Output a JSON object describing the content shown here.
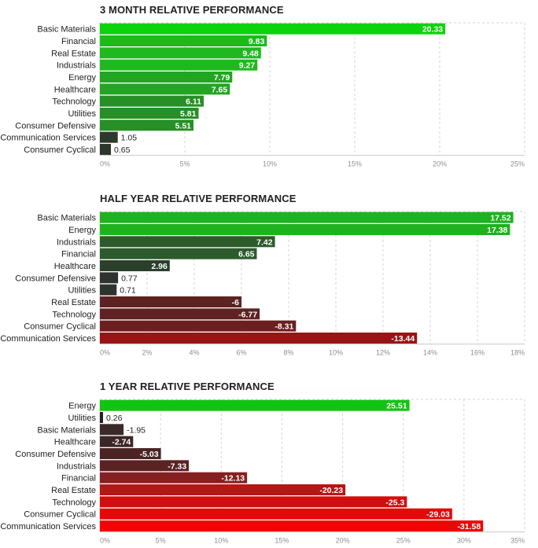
{
  "chart_data": [
    {
      "type": "bar",
      "title": "3 MONTH RELATIVE PERFORMANCE",
      "categories": [
        "Basic Materials",
        "Financial",
        "Real Estate",
        "Industrials",
        "Energy",
        "Healthcare",
        "Technology",
        "Utilities",
        "Consumer Defensive",
        "Communication Services",
        "Consumer Cyclical"
      ],
      "values": [
        20.33,
        9.83,
        9.48,
        9.27,
        7.79,
        7.65,
        6.11,
        5.81,
        5.51,
        1.05,
        0.65
      ],
      "value_labels": [
        "20.33",
        "9.83",
        "9.48",
        "9.27",
        "7.79",
        "7.65",
        "6.11",
        "5.81",
        "5.51",
        "1.05",
        "0.65"
      ],
      "xlim": [
        0,
        25
      ],
      "ticks": [
        0,
        5,
        10,
        15,
        20,
        25
      ],
      "tick_labels": [
        "0%",
        "5%",
        "10%",
        "15%",
        "20%",
        "25%"
      ],
      "colors": [
        "#0bd40b",
        "#1fb91f",
        "#1fb91f",
        "#1fb91f",
        "#23a523",
        "#23a523",
        "#268f26",
        "#268f26",
        "#268f26",
        "#2c3a2c",
        "#2c362c"
      ],
      "xlabel": "",
      "ylabel": "",
      "grid": true
    },
    {
      "type": "bar",
      "title": "HALF YEAR RELATIVE PERFORMANCE",
      "categories": [
        "Basic Materials",
        "Energy",
        "Industrials",
        "Financial",
        "Healthcare",
        "Consumer Defensive",
        "Utilities",
        "Real Estate",
        "Technology",
        "Consumer Cyclical",
        "Communication Services"
      ],
      "values": [
        17.52,
        17.38,
        7.42,
        6.65,
        2.96,
        0.77,
        0.71,
        -6,
        -6.77,
        -8.31,
        -13.44
      ],
      "value_labels": [
        "17.52",
        "17.38",
        "7.42",
        "6.65",
        "2.96",
        "0.77",
        "0.71",
        "-6",
        "-6.77",
        "-8.31",
        "-13.44"
      ],
      "xlim": [
        0,
        18
      ],
      "ticks": [
        0,
        2,
        4,
        6,
        8,
        10,
        12,
        14,
        16,
        18
      ],
      "tick_labels": [
        "0%",
        "2%",
        "4%",
        "6%",
        "8%",
        "10%",
        "12%",
        "14%",
        "16%",
        "18%"
      ],
      "colors": [
        "#1eb21e",
        "#1eb21e",
        "#2d5a2d",
        "#2d5a2d",
        "#2b402b",
        "#2f332f",
        "#2f332f",
        "#5e2222",
        "#5e2222",
        "#6b1f1f",
        "#991414"
      ],
      "xlabel": "",
      "ylabel": "",
      "grid": true
    },
    {
      "type": "bar",
      "title": "1 YEAR RELATIVE PERFORMANCE",
      "categories": [
        "Energy",
        "Utilities",
        "Basic Materials",
        "Healthcare",
        "Consumer Defensive",
        "Industrials",
        "Financial",
        "Real Estate",
        "Technology",
        "Consumer Cyclical",
        "Communication Services"
      ],
      "values": [
        25.51,
        0.26,
        -1.95,
        -2.74,
        -5.03,
        -7.33,
        -12.13,
        -20.23,
        -25.3,
        -29.03,
        -31.58
      ],
      "value_labels": [
        "25.51",
        "0.26",
        "-1.95",
        "-2.74",
        "-5.03",
        "-7.33",
        "-12.13",
        "-20.23",
        "-25.3",
        "-29.03",
        "-31.58"
      ],
      "xlim": [
        0,
        35
      ],
      "ticks": [
        0,
        5,
        10,
        15,
        20,
        25,
        30,
        35
      ],
      "tick_labels": [
        "0%",
        "5%",
        "10%",
        "15%",
        "20%",
        "25%",
        "30%",
        "35%"
      ],
      "colors": [
        "#12c412",
        "#1e241e",
        "#3b2a2a",
        "#3d2626",
        "#4a2424",
        "#5a2222",
        "#862020",
        "#b51616",
        "#d10e0e",
        "#e60808",
        "#f00505"
      ],
      "xlabel": "",
      "ylabel": "",
      "grid": true
    }
  ]
}
